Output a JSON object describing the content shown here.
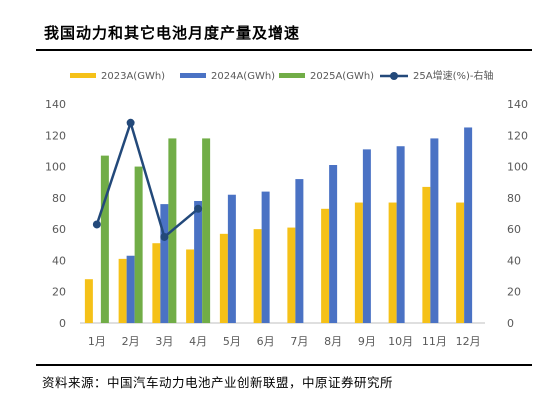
{
  "title": "我国动力和其它电池月度产量及增速",
  "source": "资料来源：中国汽车动力电池产业创新联盟，中原证券研究所",
  "chart_data": {
    "type": "bar",
    "categories": [
      "1月",
      "2月",
      "3月",
      "4月",
      "5月",
      "6月",
      "7月",
      "8月",
      "9月",
      "10月",
      "11月",
      "12月"
    ],
    "series": [
      {
        "name": "2023A(GWh)",
        "kind": "bar",
        "color": "#F5C118",
        "values": [
          28,
          41,
          51,
          47,
          57,
          60,
          61,
          73,
          77,
          77,
          87,
          77
        ]
      },
      {
        "name": "2024A(GWh)",
        "kind": "bar",
        "color": "#4A72C4",
        "values": [
          null,
          43,
          76,
          78,
          82,
          84,
          92,
          101,
          111,
          113,
          118,
          125
        ]
      },
      {
        "name": "2025A(GWh)",
        "kind": "bar",
        "color": "#71AD47",
        "values": [
          107,
          100,
          118,
          118,
          null,
          null,
          null,
          null,
          null,
          null,
          null,
          null
        ]
      },
      {
        "name": "25A增速(%)-右轴",
        "kind": "line",
        "axis": "right",
        "color": "#23497A",
        "values": [
          63,
          128,
          55,
          73,
          null,
          null,
          null,
          null,
          null,
          null,
          null,
          null
        ]
      }
    ],
    "y_left": {
      "min": 0,
      "max": 140,
      "ticks": [
        0,
        20,
        40,
        60,
        80,
        100,
        120,
        140
      ]
    },
    "y_right": {
      "min": 0,
      "max": 140,
      "ticks": [
        0,
        20,
        40,
        60,
        80,
        100,
        120,
        140
      ]
    },
    "grid": false,
    "legend_position": "top"
  }
}
